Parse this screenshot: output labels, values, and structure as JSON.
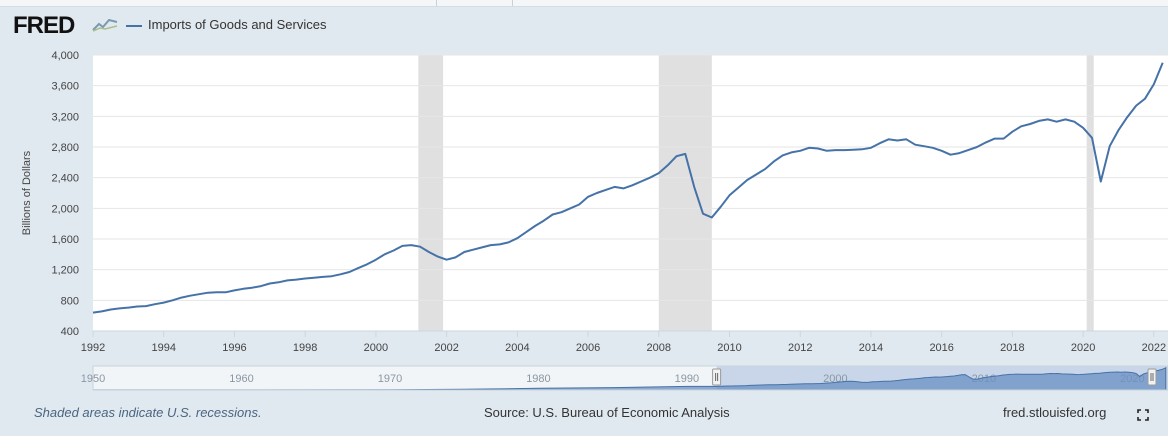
{
  "header": {
    "logo_text": "FRED",
    "legend_label": "Imports of Goods and Services"
  },
  "colors": {
    "line": "#4572a7",
    "recession": "#e0e0e0",
    "navigator_fill": "#c2d0e6",
    "navigator_area": "#6a90c4",
    "background": "#e1e9f0"
  },
  "chart_data": {
    "type": "line",
    "ylabel": "Billions of Dollars",
    "xlim": [
      1992.0,
      2022.4
    ],
    "ylim": [
      400,
      4000
    ],
    "yticks": [
      400,
      800,
      1200,
      1600,
      2000,
      2400,
      2800,
      3200,
      3600,
      4000
    ],
    "xticks": [
      1992,
      1994,
      1996,
      1998,
      2000,
      2002,
      2004,
      2006,
      2008,
      2010,
      2012,
      2014,
      2016,
      2018,
      2020,
      2022
    ],
    "grid": true,
    "legend": "top-left",
    "recessions": [
      [
        2001.2,
        2001.9
      ],
      [
        2008.0,
        2009.5
      ],
      [
        2020.1,
        2020.3
      ]
    ],
    "series": [
      {
        "name": "Imports of Goods and Services",
        "x": [
          1992.0,
          1992.25,
          1992.5,
          1992.75,
          1993.0,
          1993.25,
          1993.5,
          1993.75,
          1994.0,
          1994.25,
          1994.5,
          1994.75,
          1995.0,
          1995.25,
          1995.5,
          1995.75,
          1996.0,
          1996.25,
          1996.5,
          1996.75,
          1997.0,
          1997.25,
          1997.5,
          1997.75,
          1998.0,
          1998.25,
          1998.5,
          1998.75,
          1999.0,
          1999.25,
          1999.5,
          1999.75,
          2000.0,
          2000.25,
          2000.5,
          2000.75,
          2001.0,
          2001.25,
          2001.5,
          2001.75,
          2002.0,
          2002.25,
          2002.5,
          2002.75,
          2003.0,
          2003.25,
          2003.5,
          2003.75,
          2004.0,
          2004.25,
          2004.5,
          2004.75,
          2005.0,
          2005.25,
          2005.5,
          2005.75,
          2006.0,
          2006.25,
          2006.5,
          2006.75,
          2007.0,
          2007.25,
          2007.5,
          2007.75,
          2008.0,
          2008.25,
          2008.5,
          2008.75,
          2009.0,
          2009.25,
          2009.5,
          2009.75,
          2010.0,
          2010.25,
          2010.5,
          2010.75,
          2011.0,
          2011.25,
          2011.5,
          2011.75,
          2012.0,
          2012.25,
          2012.5,
          2012.75,
          2013.0,
          2013.25,
          2013.5,
          2013.75,
          2014.0,
          2014.25,
          2014.5,
          2014.75,
          2015.0,
          2015.25,
          2015.5,
          2015.75,
          2016.0,
          2016.25,
          2016.5,
          2016.75,
          2017.0,
          2017.25,
          2017.5,
          2017.75,
          2018.0,
          2018.25,
          2018.5,
          2018.75,
          2019.0,
          2019.25,
          2019.5,
          2019.75,
          2020.0,
          2020.25,
          2020.5,
          2020.75,
          2021.0,
          2021.25,
          2021.5,
          2021.75,
          2022.0,
          2022.25
        ],
        "values": [
          640,
          655,
          680,
          695,
          705,
          720,
          725,
          750,
          770,
          800,
          835,
          860,
          880,
          900,
          905,
          905,
          930,
          950,
          965,
          985,
          1020,
          1035,
          1060,
          1070,
          1085,
          1095,
          1105,
          1115,
          1140,
          1170,
          1220,
          1270,
          1330,
          1400,
          1450,
          1510,
          1520,
          1500,
          1430,
          1370,
          1330,
          1360,
          1430,
          1460,
          1490,
          1520,
          1530,
          1555,
          1610,
          1690,
          1770,
          1840,
          1920,
          1950,
          2000,
          2050,
          2150,
          2200,
          2240,
          2280,
          2260,
          2300,
          2350,
          2400,
          2460,
          2560,
          2680,
          2710,
          2280,
          1930,
          1880,
          2020,
          2170,
          2270,
          2370,
          2440,
          2510,
          2610,
          2690,
          2730,
          2750,
          2790,
          2780,
          2750,
          2760,
          2760,
          2765,
          2770,
          2790,
          2850,
          2900,
          2885,
          2900,
          2830,
          2810,
          2790,
          2750,
          2700,
          2720,
          2760,
          2800,
          2860,
          2910,
          2910,
          3000,
          3070,
          3100,
          3140,
          3160,
          3130,
          3160,
          3130,
          3050,
          2920,
          2350,
          2810,
          3020,
          3190,
          3340,
          3430,
          3620,
          3900
        ]
      }
    ],
    "navigator": {
      "labels": [
        "1950",
        "1960",
        "1970",
        "1980",
        "1990",
        "2000",
        "2010",
        "2020"
      ],
      "range_start": 1950,
      "range_end": 2022.4,
      "selected_from": 1992,
      "selected_to": 2022.4
    }
  },
  "footer": {
    "recession_note": "Shaded areas indicate U.S. recessions.",
    "source": "Source: U.S. Bureau of Economic Analysis",
    "site": "fred.stlouisfed.org"
  },
  "icons": {
    "logo": "fred-chart-icon",
    "fullscreen": "fullscreen-icon"
  }
}
